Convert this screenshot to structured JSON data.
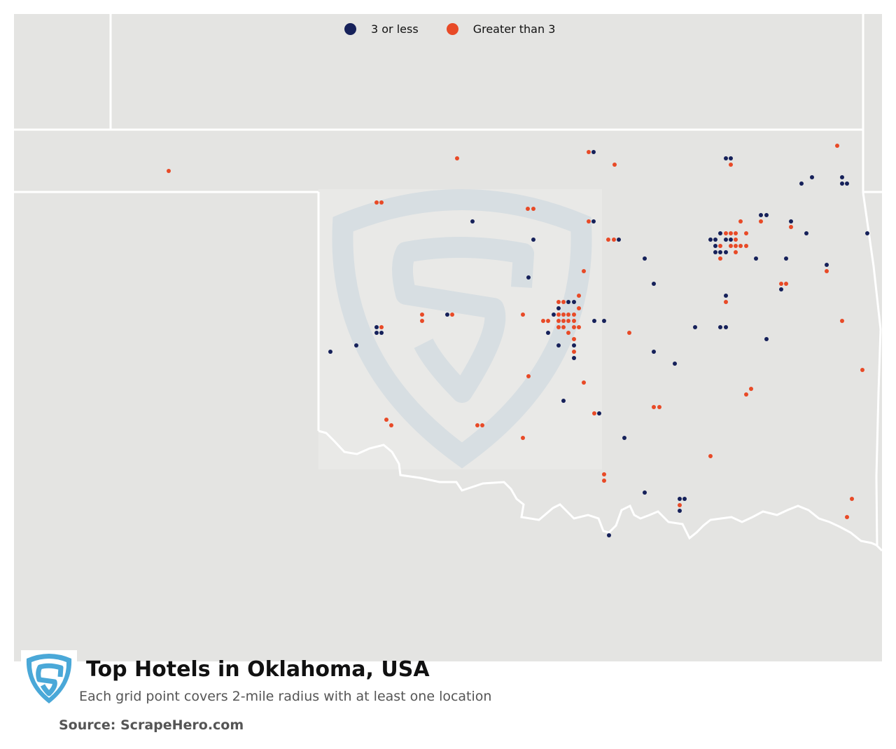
{
  "legend": [
    {
      "label": "3 or less",
      "color": "#16215a"
    },
    {
      "label": "Greater than 3",
      "color": "#e84a27"
    }
  ],
  "footer": {
    "title": "Top Hotels in Oklahoma, USA",
    "subtitle": "Each grid point covers 2-mile radius with at least one location",
    "source": "Source: ScrapeHero.com"
  },
  "colors": {
    "map_background": "#e4e4e2",
    "state_border": "#ffffff",
    "watermark": "#d7dee2",
    "logo_blue": "#4aa8d8"
  },
  "icons": {
    "logo": "scrapehero-shield-logo",
    "watermark": "scrapehero-shield-watermark"
  }
}
